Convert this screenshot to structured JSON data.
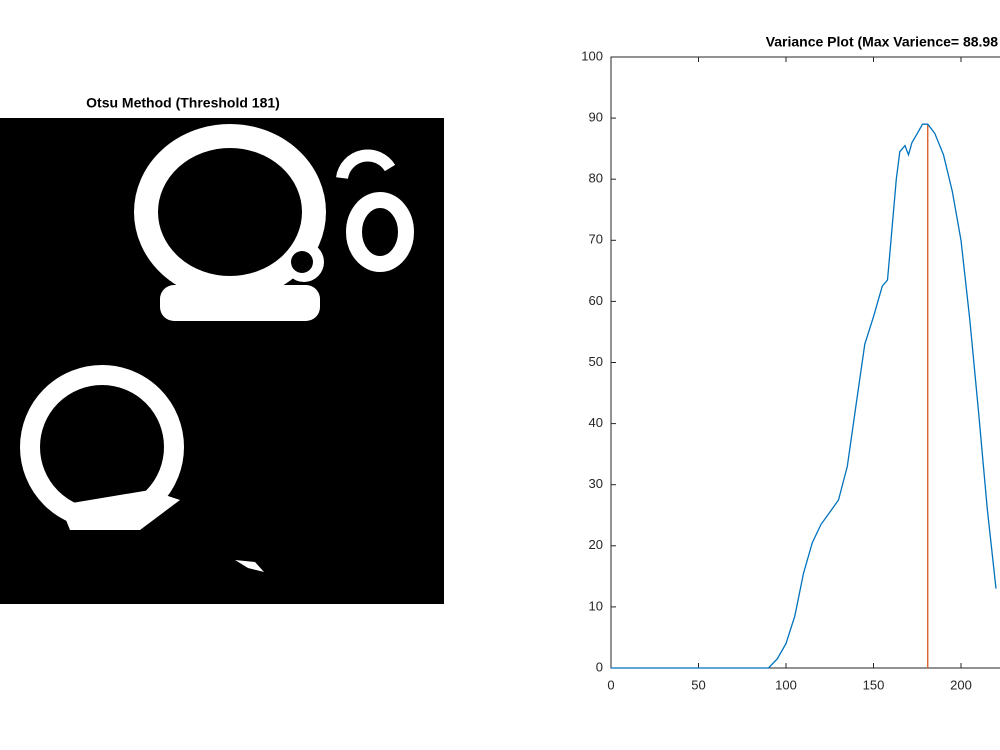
{
  "chart_data": [
    {
      "type": "image",
      "title": "Otsu Method (Threshold 181)"
    },
    {
      "type": "line",
      "title": "Variance Plot (Max Varience= 88.98",
      "x": [
        0,
        50,
        90,
        95,
        100,
        105,
        110,
        115,
        120,
        125,
        130,
        135,
        140,
        145,
        150,
        155,
        158,
        160,
        163,
        165,
        168,
        170,
        172,
        175,
        178,
        181,
        185,
        190,
        195,
        200,
        205,
        210,
        215,
        220
      ],
      "values": [
        0,
        0,
        0,
        1.5,
        4,
        8.5,
        15.5,
        20.5,
        23.5,
        25.5,
        27.5,
        33,
        43,
        53,
        57.5,
        62.5,
        63.5,
        70,
        80,
        84.5,
        85.5,
        84,
        86,
        87.5,
        89,
        89,
        87.5,
        84,
        78,
        70,
        57,
        42,
        26,
        13
      ],
      "color": "#0072bd",
      "vline": {
        "x": 181,
        "color": "#d95319"
      },
      "xlim": [
        0,
        255
      ],
      "ylim": [
        0,
        100
      ],
      "xticks": [
        0,
        50,
        100,
        150,
        200
      ],
      "yticks": [
        0,
        10,
        20,
        30,
        40,
        50,
        60,
        70,
        80,
        90,
        100
      ]
    }
  ]
}
